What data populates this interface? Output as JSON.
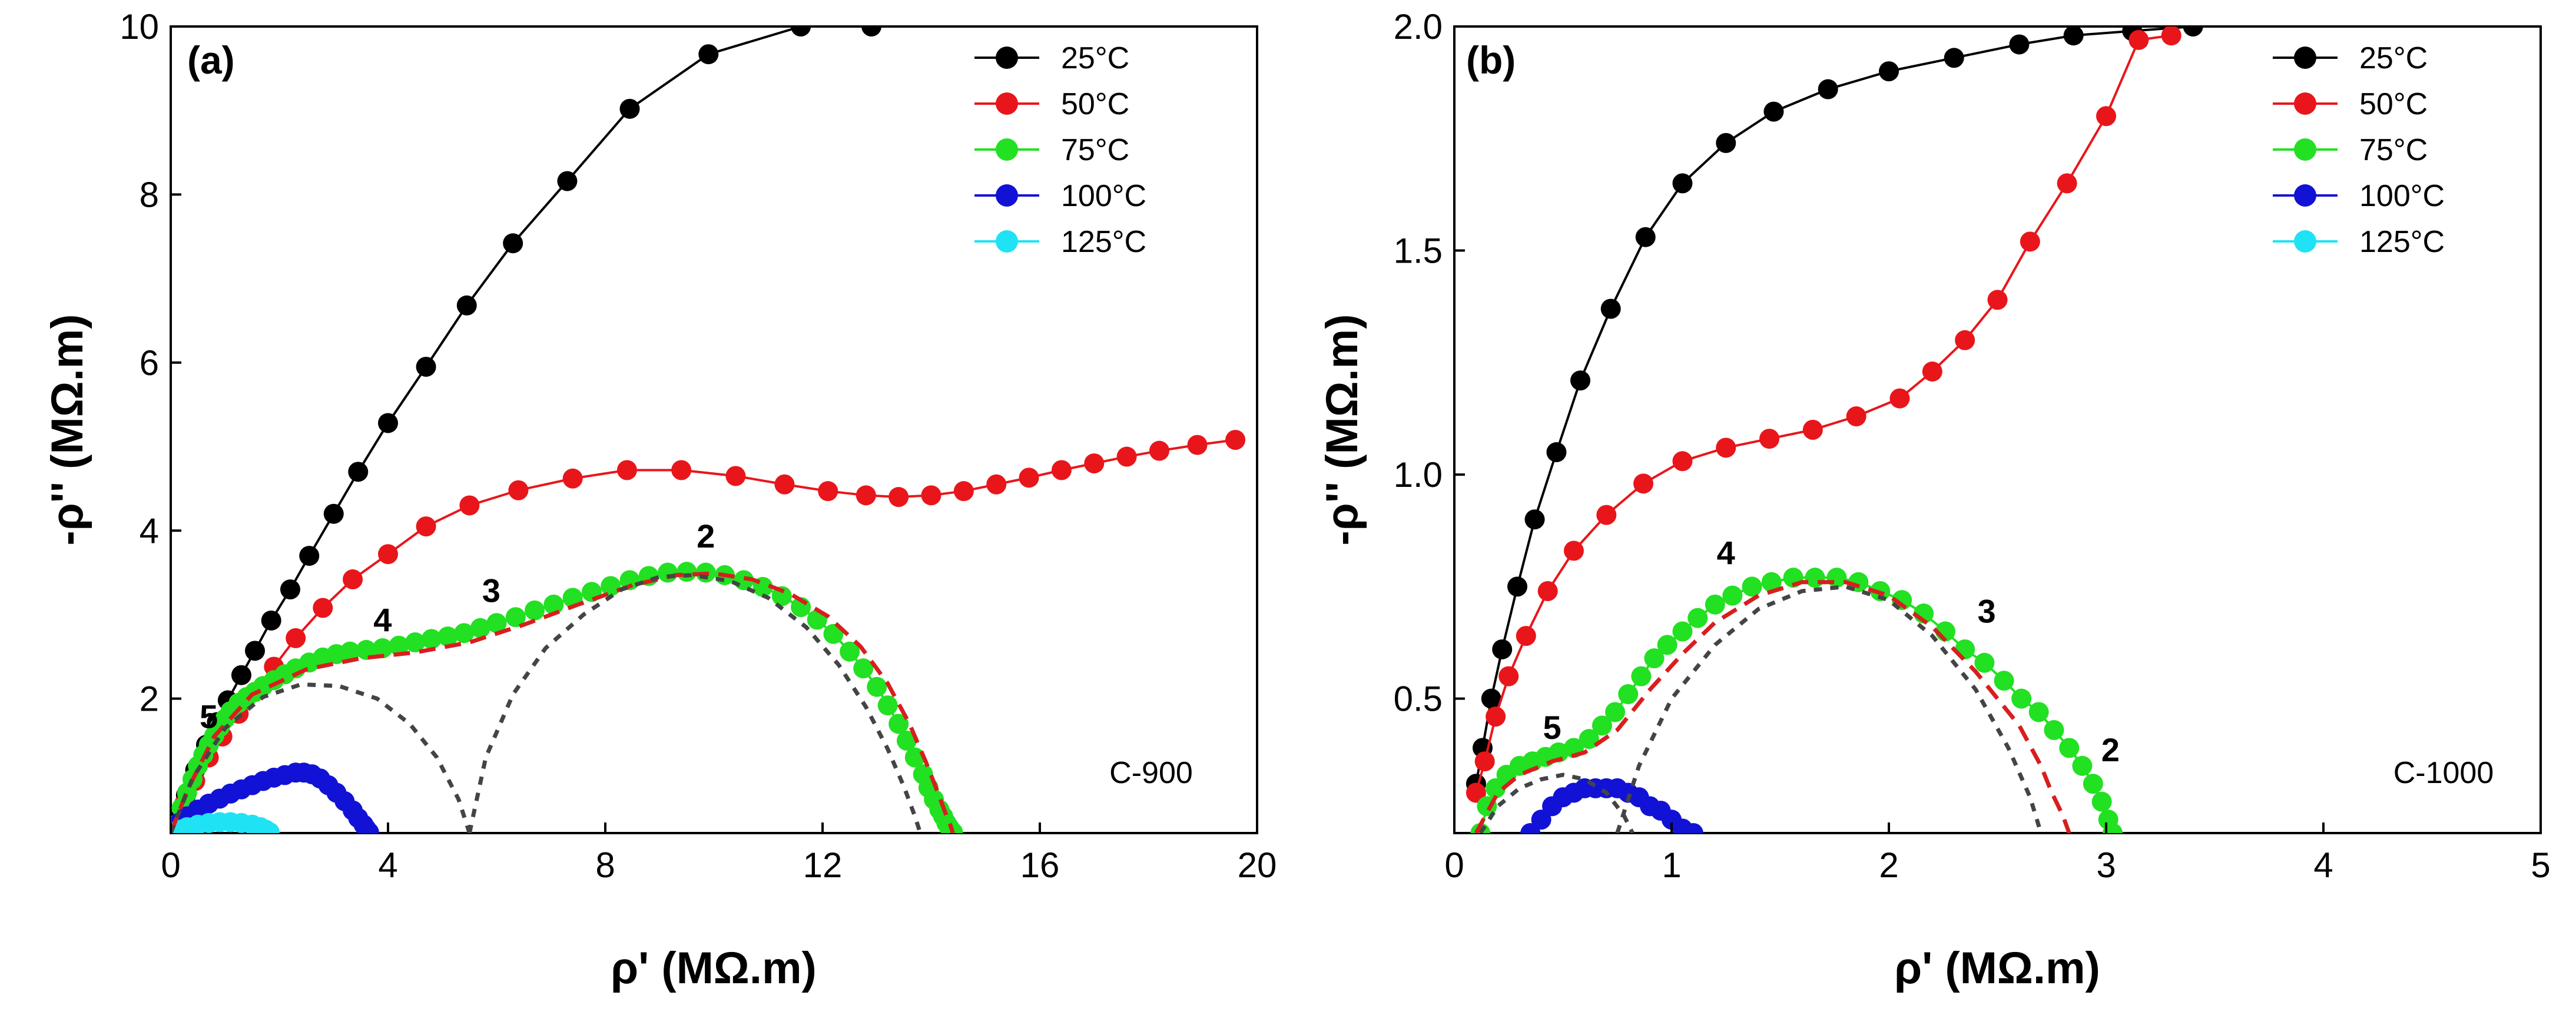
{
  "colors": {
    "s25": "#000000",
    "s50": "#e8161b",
    "s75": "#22e022",
    "s100": "#1212d6",
    "s125": "#1fe3f5",
    "fit_red": "#d81e1e",
    "fit_gray": "#444444"
  },
  "chart_data": [
    {
      "type": "scatter",
      "panel_label": "(a)",
      "sample": "C-900",
      "xlabel": "ρ' (MΩ.m)",
      "ylabel": "-ρ'' (MΩ.m)",
      "xlim": [
        0,
        20
      ],
      "ylim": [
        0.4,
        10
      ],
      "xticks": [
        0,
        4,
        8,
        12,
        16,
        20
      ],
      "yticks": [
        2,
        4,
        6,
        8,
        10
      ],
      "legend_position": "top-right",
      "series": [
        {
          "name": "25°C",
          "color_key": "s25",
          "x": [
            0.12,
            0.28,
            0.45,
            0.65,
            0.85,
            1.05,
            1.3,
            1.55,
            1.85,
            2.2,
            2.55,
            3.0,
            3.45,
            4.0,
            4.7,
            5.45,
            6.3,
            7.3,
            8.45,
            9.9,
            11.6,
            12.9
          ],
          "y": [
            0.55,
            0.85,
            1.15,
            1.45,
            1.72,
            1.98,
            2.28,
            2.57,
            2.93,
            3.3,
            3.7,
            4.2,
            4.7,
            5.28,
            5.95,
            6.68,
            7.42,
            8.16,
            9.02,
            9.67,
            10.0,
            10.0
          ]
        },
        {
          "name": "50°C",
          "color_key": "s50",
          "x": [
            0.1,
            0.25,
            0.45,
            0.7,
            0.95,
            1.25,
            1.55,
            1.9,
            2.3,
            2.8,
            3.35,
            4.0,
            4.7,
            5.5,
            6.4,
            7.4,
            8.4,
            9.4,
            10.4,
            11.3,
            12.1,
            12.8,
            13.4,
            14.0,
            14.6,
            15.2,
            15.8,
            16.4,
            17.0,
            17.6,
            18.2,
            18.9,
            19.6
          ],
          "y": [
            0.5,
            0.75,
            1.02,
            1.3,
            1.55,
            1.82,
            2.08,
            2.38,
            2.72,
            3.08,
            3.42,
            3.72,
            4.05,
            4.3,
            4.48,
            4.62,
            4.72,
            4.72,
            4.65,
            4.55,
            4.47,
            4.42,
            4.4,
            4.42,
            4.47,
            4.55,
            4.63,
            4.72,
            4.8,
            4.88,
            4.95,
            5.02,
            5.08
          ]
        },
        {
          "name": "75°C",
          "color_key": "s75",
          "x": [
            0.1,
            0.2,
            0.3,
            0.4,
            0.5,
            0.6,
            0.7,
            0.8,
            0.9,
            1.0,
            1.1,
            1.25,
            1.4,
            1.55,
            1.7,
            1.9,
            2.1,
            2.3,
            2.55,
            2.8,
            3.05,
            3.3,
            3.6,
            3.9,
            4.2,
            4.5,
            4.8,
            5.1,
            5.4,
            5.7,
            6.0,
            6.35,
            6.7,
            7.05,
            7.4,
            7.75,
            8.1,
            8.45,
            8.8,
            9.15,
            9.5,
            9.85,
            10.2,
            10.55,
            10.9,
            11.25,
            11.6,
            11.9,
            12.2,
            12.5,
            12.75,
            13.0,
            13.2,
            13.4,
            13.55,
            13.7,
            13.85,
            13.95,
            14.05,
            14.15,
            14.22,
            14.28,
            14.33,
            14.37,
            14.4
          ],
          "y": [
            0.5,
            0.7,
            0.88,
            1.04,
            1.2,
            1.33,
            1.45,
            1.56,
            1.66,
            1.76,
            1.85,
            1.95,
            2.02,
            2.08,
            2.15,
            2.22,
            2.29,
            2.36,
            2.43,
            2.49,
            2.53,
            2.56,
            2.58,
            2.6,
            2.63,
            2.67,
            2.71,
            2.74,
            2.78,
            2.84,
            2.9,
            2.97,
            3.05,
            3.12,
            3.2,
            3.27,
            3.34,
            3.41,
            3.46,
            3.5,
            3.51,
            3.5,
            3.47,
            3.41,
            3.33,
            3.22,
            3.09,
            2.94,
            2.77,
            2.56,
            2.36,
            2.14,
            1.92,
            1.7,
            1.5,
            1.3,
            1.1,
            0.94,
            0.8,
            0.68,
            0.6,
            0.52,
            0.47,
            0.43,
            0.41
          ]
        },
        {
          "name": "100°C",
          "color_key": "s100",
          "x": [
            0.05,
            0.15,
            0.3,
            0.5,
            0.7,
            0.9,
            1.1,
            1.3,
            1.5,
            1.7,
            1.9,
            2.1,
            2.3,
            2.45,
            2.6,
            2.75,
            2.9,
            3.05,
            3.2,
            3.35,
            3.45,
            3.55,
            3.6,
            3.65
          ],
          "y": [
            0.42,
            0.52,
            0.6,
            0.68,
            0.75,
            0.81,
            0.87,
            0.92,
            0.97,
            1.02,
            1.06,
            1.09,
            1.12,
            1.12,
            1.1,
            1.05,
            0.97,
            0.88,
            0.78,
            0.67,
            0.58,
            0.5,
            0.45,
            0.41
          ]
        },
        {
          "name": "125°C",
          "color_key": "s125",
          "x": [
            0.05,
            0.15,
            0.3,
            0.5,
            0.7,
            0.9,
            1.1,
            1.3,
            1.5,
            1.65,
            1.75,
            1.82
          ],
          "y": [
            0.41,
            0.44,
            0.47,
            0.5,
            0.52,
            0.53,
            0.53,
            0.52,
            0.5,
            0.47,
            0.44,
            0.41
          ]
        }
      ],
      "fits": [
        {
          "name": "total fit",
          "color_key": "fit_red",
          "style": "dashed",
          "x": [
            0,
            0.3,
            0.8,
            1.5,
            2.5,
            3.5,
            4.5,
            5.5,
            6.5,
            7.5,
            8.5,
            9.3,
            10.0,
            10.7,
            11.4,
            12.1,
            12.7,
            13.2,
            13.6,
            13.9,
            14.1,
            14.25,
            14.35,
            14.4
          ],
          "y": [
            0.4,
            0.9,
            1.55,
            2.05,
            2.35,
            2.48,
            2.55,
            2.67,
            2.88,
            3.12,
            3.35,
            3.47,
            3.49,
            3.42,
            3.25,
            2.98,
            2.62,
            2.18,
            1.7,
            1.25,
            0.92,
            0.66,
            0.5,
            0.4
          ]
        },
        {
          "name": "low-frequency arc",
          "color_key": "fit_gray",
          "style": "dotted",
          "x": [
            5.5,
            5.8,
            6.3,
            6.9,
            7.6,
            8.3,
            9.0,
            9.6,
            10.3,
            11.0,
            11.7,
            12.3,
            12.8,
            13.2,
            13.5,
            13.7,
            13.8
          ],
          "y": [
            0.4,
            1.3,
            2.05,
            2.6,
            3.0,
            3.3,
            3.45,
            3.47,
            3.4,
            3.2,
            2.85,
            2.4,
            1.9,
            1.4,
            0.95,
            0.6,
            0.4
          ]
        },
        {
          "name": "high-frequency arc",
          "color_key": "fit_gray",
          "style": "dotted",
          "x": [
            0,
            0.4,
            1.0,
            1.7,
            2.4,
            3.1,
            3.8,
            4.4,
            4.9,
            5.3,
            5.5
          ],
          "y": [
            0.4,
            1.05,
            1.65,
            2.02,
            2.17,
            2.15,
            2.0,
            1.7,
            1.3,
            0.8,
            0.4
          ]
        }
      ],
      "annotations": [
        {
          "text": "2",
          "x": 9.85,
          "y": 3.8
        },
        {
          "text": "3",
          "x": 5.9,
          "y": 3.15
        },
        {
          "text": "4",
          "x": 3.9,
          "y": 2.8
        },
        {
          "text": "5",
          "x": 0.7,
          "y": 1.65
        }
      ]
    },
    {
      "type": "scatter",
      "panel_label": "(b)",
      "sample": "C-1000",
      "xlabel": "ρ' (MΩ.m)",
      "ylabel": "-ρ'' (MΩ.m)",
      "xlim": [
        0,
        5
      ],
      "ylim": [
        0.2,
        2.0
      ],
      "xticks": [
        0,
        1,
        2,
        3,
        4,
        5
      ],
      "yticks": [
        0.5,
        1.0,
        1.5,
        2.0
      ],
      "legend_position": "top-right",
      "series": [
        {
          "name": "25°C",
          "color_key": "s25",
          "x": [
            0.1,
            0.13,
            0.17,
            0.22,
            0.29,
            0.37,
            0.47,
            0.58,
            0.72,
            0.88,
            1.05,
            1.25,
            1.47,
            1.72,
            2.0,
            2.3,
            2.6,
            2.85,
            3.12,
            3.4
          ],
          "y": [
            0.31,
            0.39,
            0.5,
            0.61,
            0.75,
            0.9,
            1.05,
            1.21,
            1.37,
            1.53,
            1.65,
            1.74,
            1.81,
            1.86,
            1.9,
            1.93,
            1.96,
            1.98,
            1.99,
            2.0
          ]
        },
        {
          "name": "50°C",
          "color_key": "s50",
          "x": [
            0.1,
            0.14,
            0.19,
            0.25,
            0.33,
            0.43,
            0.55,
            0.7,
            0.87,
            1.05,
            1.25,
            1.45,
            1.65,
            1.85,
            2.05,
            2.2,
            2.35,
            2.5,
            2.65,
            2.82,
            3.0,
            3.15,
            3.3
          ],
          "y": [
            0.29,
            0.36,
            0.46,
            0.55,
            0.64,
            0.74,
            0.83,
            0.91,
            0.98,
            1.03,
            1.06,
            1.08,
            1.1,
            1.13,
            1.17,
            1.23,
            1.3,
            1.39,
            1.52,
            1.65,
            1.8,
            1.97,
            1.98
          ]
        },
        {
          "name": "75°C",
          "color_key": "s75",
          "x": [
            0.12,
            0.15,
            0.19,
            0.24,
            0.3,
            0.36,
            0.42,
            0.48,
            0.55,
            0.62,
            0.68,
            0.74,
            0.8,
            0.86,
            0.92,
            0.98,
            1.05,
            1.12,
            1.2,
            1.28,
            1.37,
            1.46,
            1.56,
            1.66,
            1.76,
            1.86,
            1.96,
            2.06,
            2.16,
            2.26,
            2.35,
            2.44,
            2.53,
            2.61,
            2.69,
            2.76,
            2.83,
            2.89,
            2.94,
            2.98,
            3.01,
            3.03
          ],
          "y": [
            0.2,
            0.26,
            0.3,
            0.33,
            0.35,
            0.36,
            0.37,
            0.38,
            0.39,
            0.41,
            0.44,
            0.47,
            0.51,
            0.55,
            0.59,
            0.62,
            0.65,
            0.68,
            0.71,
            0.73,
            0.75,
            0.76,
            0.77,
            0.77,
            0.77,
            0.76,
            0.74,
            0.72,
            0.69,
            0.65,
            0.61,
            0.58,
            0.54,
            0.5,
            0.47,
            0.43,
            0.39,
            0.35,
            0.31,
            0.27,
            0.23,
            0.2
          ]
        },
        {
          "name": "100°C",
          "color_key": "s100",
          "x": [
            0.35,
            0.4,
            0.45,
            0.5,
            0.55,
            0.6,
            0.65,
            0.7,
            0.75,
            0.8,
            0.85,
            0.9,
            0.95,
            1.0,
            1.05,
            1.1
          ],
          "y": [
            0.2,
            0.23,
            0.26,
            0.28,
            0.29,
            0.3,
            0.3,
            0.3,
            0.3,
            0.29,
            0.28,
            0.26,
            0.25,
            0.23,
            0.21,
            0.2
          ]
        },
        {
          "name": "125°C",
          "color_key": "s125",
          "x": [],
          "y": []
        }
      ],
      "fits": [
        {
          "name": "total fit",
          "color_key": "fit_red",
          "style": "dashed",
          "x": [
            0.1,
            0.2,
            0.3,
            0.45,
            0.6,
            0.75,
            0.9,
            1.05,
            1.2,
            1.4,
            1.6,
            1.8,
            2.0,
            2.2,
            2.4,
            2.6,
            2.7,
            2.75,
            2.8,
            2.83
          ],
          "y": [
            0.2,
            0.29,
            0.33,
            0.36,
            0.38,
            0.43,
            0.52,
            0.6,
            0.67,
            0.73,
            0.76,
            0.76,
            0.73,
            0.66,
            0.56,
            0.44,
            0.35,
            0.29,
            0.24,
            0.2
          ]
        },
        {
          "name": "low-frequency arc",
          "color_key": "fit_gray",
          "style": "dotted",
          "x": [
            0.75,
            0.85,
            1.0,
            1.2,
            1.4,
            1.6,
            1.8,
            2.0,
            2.2,
            2.4,
            2.55,
            2.65,
            2.7
          ],
          "y": [
            0.2,
            0.35,
            0.5,
            0.62,
            0.7,
            0.74,
            0.75,
            0.72,
            0.64,
            0.52,
            0.39,
            0.28,
            0.2
          ]
        },
        {
          "name": "high-frequency arc",
          "color_key": "fit_gray",
          "style": "dotted",
          "x": [
            0.12,
            0.2,
            0.3,
            0.4,
            0.5,
            0.6,
            0.7,
            0.78,
            0.82
          ],
          "y": [
            0.2,
            0.26,
            0.3,
            0.32,
            0.33,
            0.32,
            0.29,
            0.24,
            0.2
          ]
        }
      ],
      "annotations": [
        {
          "text": "4",
          "x": 1.25,
          "y": 0.8
        },
        {
          "text": "3",
          "x": 2.45,
          "y": 0.67
        },
        {
          "text": "5",
          "x": 0.45,
          "y": 0.41
        },
        {
          "text": "2",
          "x": 3.02,
          "y": 0.36
        }
      ]
    }
  ]
}
